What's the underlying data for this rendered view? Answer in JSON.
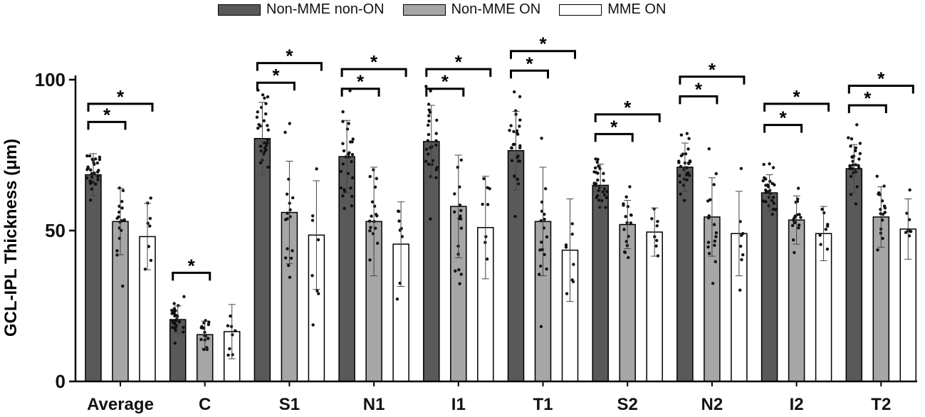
{
  "chart_data": {
    "type": "bar",
    "title": "",
    "xlabel": "",
    "ylabel": "GCL-IPL Thickness (μm)",
    "ylim": [
      0,
      100
    ],
    "yticks": [
      0,
      50,
      100
    ],
    "categories": [
      "Average",
      "C",
      "S1",
      "N1",
      "I1",
      "T1",
      "S2",
      "N2",
      "I2",
      "T2"
    ],
    "legend_position": "top",
    "series": [
      {
        "name": "Non-MME non-ON",
        "color": "#595959",
        "values": [
          68.5,
          20.5,
          80.5,
          74.5,
          79.5,
          76.5,
          65,
          71,
          62.5,
          70.5
        ],
        "sd": [
          7,
          4.5,
          12,
          12,
          12,
          13,
          7,
          8,
          6,
          8
        ]
      },
      {
        "name": "Non-MME ON",
        "color": "#a6a6a6",
        "values": [
          53,
          15.5,
          56,
          53,
          58,
          53,
          52,
          54.5,
          53.5,
          54.5
        ],
        "sd": [
          11,
          4.5,
          17,
          18,
          17,
          18,
          8,
          13,
          8,
          10
        ]
      },
      {
        "name": "MME ON",
        "color": "#ffffff",
        "values": [
          48,
          16.5,
          48.5,
          45.5,
          51,
          43.5,
          49.5,
          49,
          49,
          50.5
        ],
        "sd": [
          11,
          9,
          18,
          14,
          17,
          17,
          8,
          14,
          9,
          10
        ]
      }
    ],
    "significance": [
      {
        "category": "Average",
        "from": 0,
        "to": 1,
        "y": 86,
        "label": "*"
      },
      {
        "category": "Average",
        "from": 0,
        "to": 2,
        "y": 92,
        "label": "*"
      },
      {
        "category": "C",
        "from": 0,
        "to": 1,
        "y": 36,
        "label": "*"
      },
      {
        "category": "S1",
        "from": 0,
        "to": 1,
        "y": 99,
        "label": "*"
      },
      {
        "category": "S1",
        "from": 0,
        "to": 2,
        "y": 105.5,
        "label": "*"
      },
      {
        "category": "N1",
        "from": 0,
        "to": 1,
        "y": 97,
        "label": "*"
      },
      {
        "category": "N1",
        "from": 0,
        "to": 2,
        "y": 103.5,
        "label": "*"
      },
      {
        "category": "I1",
        "from": 0,
        "to": 1,
        "y": 97,
        "label": "*"
      },
      {
        "category": "I1",
        "from": 0,
        "to": 2,
        "y": 103.5,
        "label": "*"
      },
      {
        "category": "T1",
        "from": 0,
        "to": 1,
        "y": 103,
        "label": "*"
      },
      {
        "category": "T1",
        "from": 0,
        "to": 2,
        "y": 109.5,
        "label": "*"
      },
      {
        "category": "S2",
        "from": 0,
        "to": 1,
        "y": 82,
        "label": "*"
      },
      {
        "category": "S2",
        "from": 0,
        "to": 2,
        "y": 88.5,
        "label": "*"
      },
      {
        "category": "N2",
        "from": 0,
        "to": 1,
        "y": 94.5,
        "label": "*"
      },
      {
        "category": "N2",
        "from": 0,
        "to": 2,
        "y": 101,
        "label": "*"
      },
      {
        "category": "I2",
        "from": 0,
        "to": 1,
        "y": 85,
        "label": "*"
      },
      {
        "category": "I2",
        "from": 0,
        "to": 2,
        "y": 92,
        "label": "*"
      },
      {
        "category": "T2",
        "from": 0,
        "to": 1,
        "y": 91.5,
        "label": "*"
      },
      {
        "category": "T2",
        "from": 0,
        "to": 2,
        "y": 98,
        "label": "*"
      }
    ]
  }
}
